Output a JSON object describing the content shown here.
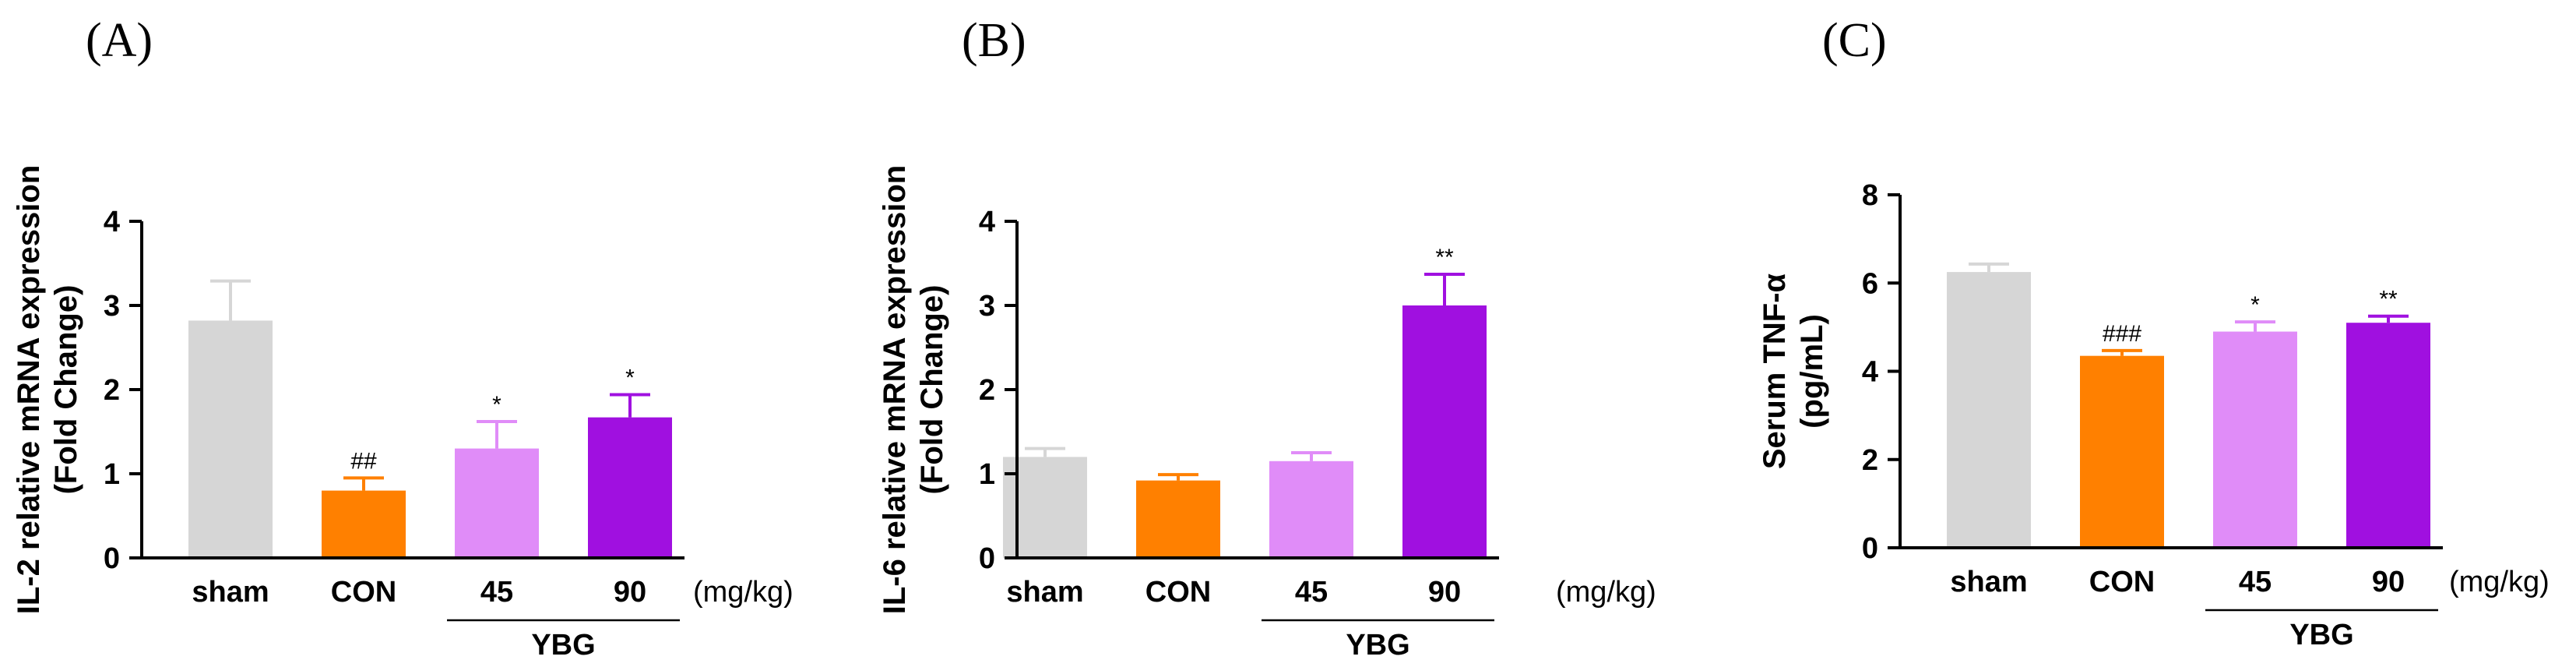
{
  "colors": {
    "sham": "#d6d6d6",
    "CON": "#ff8000",
    "45": "#e08cf8",
    "90": "#a010e0"
  },
  "chart_data": [
    {
      "type": "bar",
      "panel": "(A)",
      "ylabel_line1": "IL-2 relative mRNA expression",
      "ylabel_line2": "(Fold Change)",
      "categories": [
        "sham",
        "CON",
        "45",
        "90"
      ],
      "values": [
        2.82,
        0.8,
        1.3,
        1.67
      ],
      "errors": [
        0.47,
        0.15,
        0.32,
        0.27
      ],
      "significance": [
        "",
        "##",
        "*",
        "*"
      ],
      "ylim": [
        0,
        4
      ],
      "yticks": [
        "0",
        "1",
        "2",
        "3",
        "4"
      ],
      "unit": "(mg/kg)",
      "group_label": "YBG"
    },
    {
      "type": "bar",
      "panel": "(B)",
      "ylabel_line1": "IL-6 relative mRNA expression",
      "ylabel_line2": "(Fold Change)",
      "categories": [
        "sham",
        "CON",
        "45",
        "90"
      ],
      "values": [
        1.2,
        0.92,
        1.15,
        3.0
      ],
      "errors": [
        0.1,
        0.07,
        0.1,
        0.37
      ],
      "significance": [
        "",
        "",
        "",
        "**"
      ],
      "ylim": [
        0,
        4
      ],
      "yticks": [
        "0",
        "1",
        "2",
        "3",
        "4"
      ],
      "unit": "(mg/kg)",
      "group_label": "YBG"
    },
    {
      "type": "bar",
      "panel": "(C)",
      "ylabel_line1": "Serum TNF-α",
      "ylabel_line2": "(pg/mL)",
      "categories": [
        "sham",
        "CON",
        "45",
        "90"
      ],
      "values": [
        6.25,
        4.35,
        4.9,
        5.1
      ],
      "errors": [
        0.18,
        0.12,
        0.22,
        0.15
      ],
      "significance": [
        "",
        "###",
        "*",
        "**"
      ],
      "ylim": [
        0,
        8
      ],
      "yticks": [
        "0",
        "2",
        "4",
        "6",
        "8"
      ],
      "unit": "(mg/kg)",
      "group_label": "YBG"
    }
  ]
}
